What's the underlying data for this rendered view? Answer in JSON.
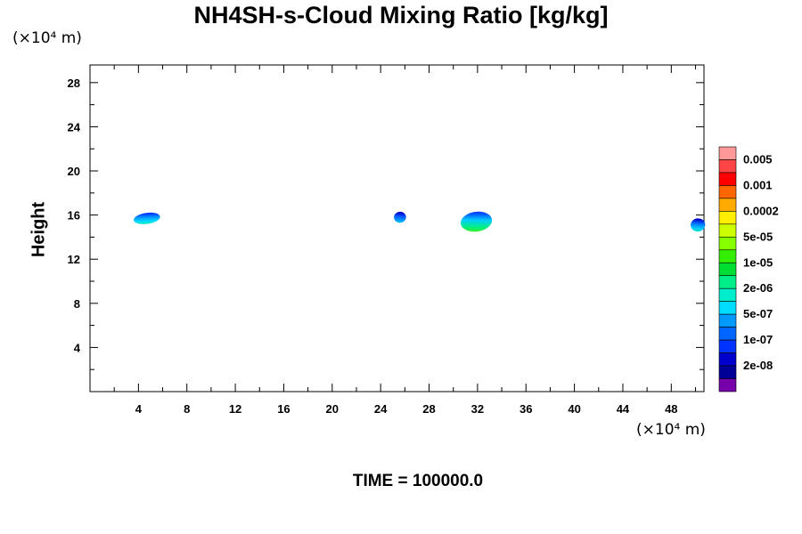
{
  "chart_data": {
    "type": "heatmap",
    "title": "NH4SH-s-Cloud Mixing Ratio [kg/kg]",
    "ylabel": "Height",
    "xlabel": "",
    "x_unit_label": "(×10⁴ m)",
    "y_unit_label": "(×10⁴ m)",
    "footer": "TIME = 100000.0",
    "xlim": [
      0,
      50.7
    ],
    "ylim": [
      0,
      29.6
    ],
    "x_ticks": [
      4,
      8,
      12,
      16,
      20,
      24,
      28,
      32,
      36,
      40,
      44,
      48
    ],
    "y_ticks": [
      4,
      8,
      12,
      16,
      20,
      24,
      28
    ],
    "colorbar": {
      "labels": [
        "0.005",
        "0.001",
        "0.0002",
        "5e-05",
        "1e-05",
        "2e-06",
        "5e-07",
        "1e-07",
        "2e-08"
      ],
      "colors": [
        "#ff9999",
        "#ff4444",
        "#ff0000",
        "#ff6600",
        "#ffaa00",
        "#ffee00",
        "#ccff00",
        "#88ff00",
        "#33ee00",
        "#00dd33",
        "#00ee88",
        "#00eecc",
        "#00ddff",
        "#0099ff",
        "#0066ff",
        "#0033ff",
        "#0000cc",
        "#000099",
        "#7700aa"
      ]
    },
    "clouds": [
      {
        "x_center": 4.7,
        "y_center": 15.7,
        "x_width": 2.2,
        "y_height": 1.0,
        "peak_value": "1e-06"
      },
      {
        "x_center": 25.6,
        "y_center": 15.8,
        "x_width": 1.0,
        "y_height": 1.0,
        "peak_value": "5e-07"
      },
      {
        "x_center": 31.9,
        "y_center": 15.4,
        "x_width": 2.6,
        "y_height": 1.8,
        "peak_value": "1e-05"
      },
      {
        "x_center": 50.2,
        "y_center": 15.1,
        "x_width": 1.2,
        "y_height": 1.2,
        "peak_value": "2e-06"
      }
    ]
  }
}
